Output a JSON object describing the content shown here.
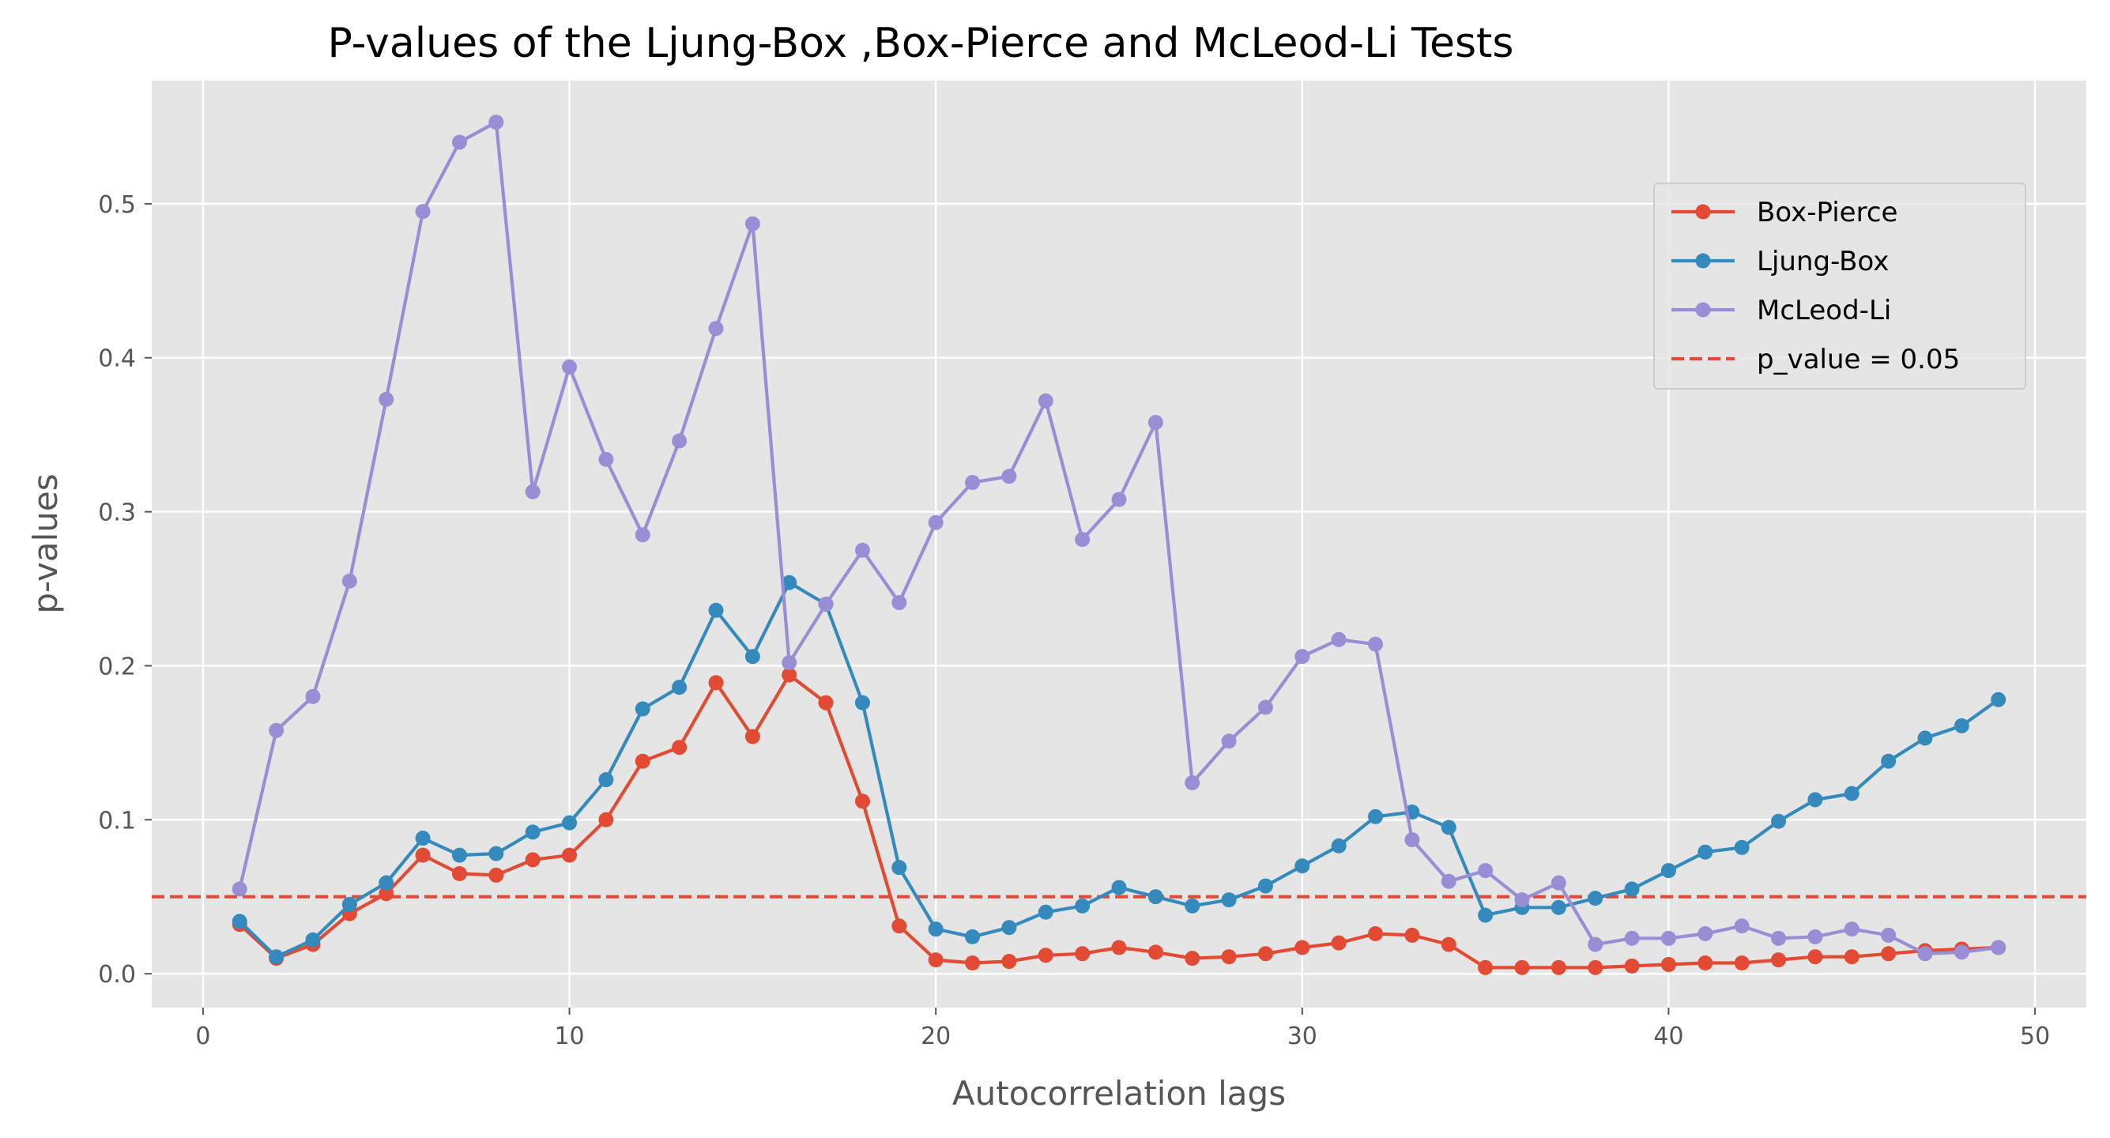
{
  "chart_data": {
    "type": "line",
    "title": "P-values of the Ljung-Box ,Box-Pierce and McLeod-Li Tests",
    "xlabel": "Autocorrelation lags",
    "ylabel": "p-values",
    "xlim": [
      -1.4,
      51.4
    ],
    "ylim": [
      -0.022,
      0.58
    ],
    "xticks": [
      0,
      10,
      20,
      30,
      40,
      50
    ],
    "yticks": [
      0.0,
      0.1,
      0.2,
      0.3,
      0.4,
      0.5
    ],
    "xtick_labels": [
      "0",
      "10",
      "20",
      "30",
      "40",
      "50"
    ],
    "ytick_labels": [
      "0.0",
      "0.1",
      "0.2",
      "0.3",
      "0.4",
      "0.5"
    ],
    "grid": true,
    "legend_position": "upper-right",
    "x": [
      1,
      2,
      3,
      4,
      5,
      6,
      7,
      8,
      9,
      10,
      11,
      12,
      13,
      14,
      15,
      16,
      17,
      18,
      19,
      20,
      21,
      22,
      23,
      24,
      25,
      26,
      27,
      28,
      29,
      30,
      31,
      32,
      33,
      34,
      35,
      36,
      37,
      38,
      39,
      40,
      41,
      42,
      43,
      44,
      45,
      46,
      47,
      48,
      49
    ],
    "series": [
      {
        "name": "Box-Pierce",
        "color": "#E24A33",
        "style": "solid-markers",
        "values": [
          0.032,
          0.01,
          0.019,
          0.039,
          0.052,
          0.077,
          0.065,
          0.064,
          0.074,
          0.077,
          0.1,
          0.138,
          0.147,
          0.189,
          0.154,
          0.194,
          0.176,
          0.112,
          0.031,
          0.009,
          0.007,
          0.008,
          0.012,
          0.013,
          0.017,
          0.014,
          0.01,
          0.011,
          0.013,
          0.017,
          0.02,
          0.026,
          0.025,
          0.019,
          0.004,
          0.004,
          0.004,
          0.004,
          0.005,
          0.006,
          0.007,
          0.007,
          0.009,
          0.011,
          0.011,
          0.013,
          0.015,
          0.016,
          0.017
        ]
      },
      {
        "name": "Ljung-Box",
        "color": "#348ABD",
        "style": "solid-markers",
        "values": [
          0.034,
          0.011,
          0.022,
          0.045,
          0.059,
          0.088,
          0.077,
          0.078,
          0.092,
          0.098,
          0.126,
          0.172,
          0.186,
          0.236,
          0.206,
          0.254,
          0.24,
          0.176,
          0.069,
          0.029,
          0.024,
          0.03,
          0.04,
          0.044,
          0.056,
          0.05,
          0.044,
          0.048,
          0.057,
          0.07,
          0.083,
          0.102,
          0.105,
          0.095,
          0.038,
          0.043,
          0.043,
          0.049,
          0.055,
          0.067,
          0.079,
          0.082,
          0.099,
          0.113,
          0.117,
          0.138,
          0.153,
          0.161,
          0.178
        ]
      },
      {
        "name": "McLeod-Li",
        "color": "#988ED5",
        "style": "solid-markers",
        "values": [
          0.055,
          0.158,
          0.18,
          0.255,
          0.373,
          0.495,
          0.54,
          0.553,
          0.313,
          0.394,
          0.334,
          0.285,
          0.346,
          0.419,
          0.487,
          0.202,
          0.24,
          0.275,
          0.241,
          0.293,
          0.319,
          0.323,
          0.372,
          0.282,
          0.308,
          0.358,
          0.124,
          0.151,
          0.173,
          0.206,
          0.217,
          0.214,
          0.087,
          0.06,
          0.067,
          0.048,
          0.059,
          0.019,
          0.023,
          0.023,
          0.026,
          0.031,
          0.023,
          0.024,
          0.029,
          0.025,
          0.013,
          0.014,
          0.017
        ]
      }
    ],
    "reference_line": {
      "name": "p_value = 0.05",
      "y": 0.05,
      "color": "#E24A33",
      "style": "dashed"
    },
    "background_color": "#E5E5E5",
    "grid_color": "#FFFFFF"
  }
}
